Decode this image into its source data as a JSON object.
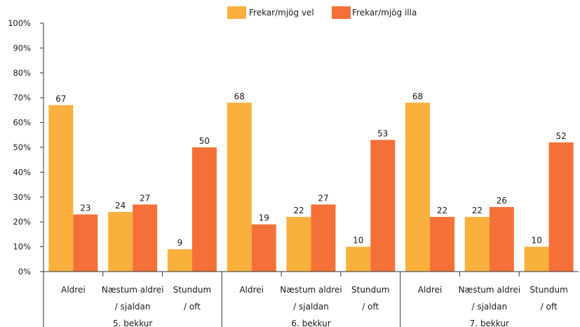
{
  "chart_data": {
    "type": "bar",
    "title": "",
    "xlabel": "",
    "ylabel": "",
    "ylim": [
      0,
      100
    ],
    "y_tick_labels": [
      "0%",
      "10%",
      "20%",
      "30%",
      "40%",
      "50%",
      "60%",
      "70%",
      "80%",
      "90%",
      "100%"
    ],
    "groups": [
      {
        "label": "5. bekkur",
        "categories": [
          "Aldrei",
          "Næstum aldrei / sjaldan",
          "Stundum / oft"
        ]
      },
      {
        "label": "6. bekkur",
        "categories": [
          "Aldrei",
          "Næstum aldrei / sjaldan",
          "Stundum / oft"
        ]
      },
      {
        "label": "7. bekkur",
        "categories": [
          "Aldrei",
          "Næstum aldrei / sjaldan",
          "Stundum / oft"
        ]
      }
    ],
    "category_lines": [
      [
        "Aldrei"
      ],
      [
        "Næstum aldrei",
        "/ sjaldan"
      ],
      [
        "Stundum",
        "/ oft"
      ]
    ],
    "series": [
      {
        "name": "Frekar/mjög vel",
        "color": "#F9B03D",
        "values": [
          67,
          24,
          9,
          68,
          22,
          10,
          68,
          22,
          10
        ]
      },
      {
        "name": "Frekar/mjög illa",
        "color": "#F47038",
        "values": [
          23,
          27,
          50,
          19,
          27,
          53,
          22,
          26,
          52
        ]
      }
    ],
    "legend_position": "top",
    "grid": false
  }
}
